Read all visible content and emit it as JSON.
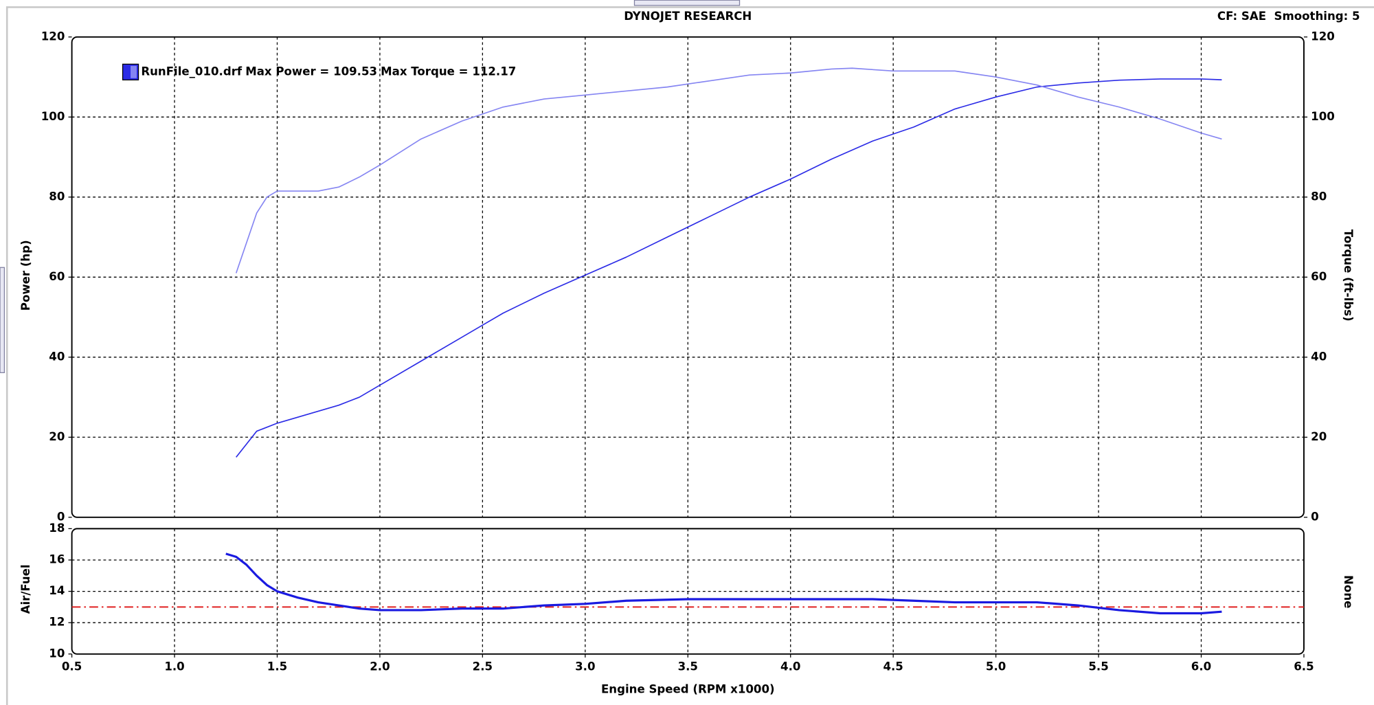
{
  "header": {
    "title": "DYNOJET RESEARCH",
    "info": "CF: SAE  Smoothing: 5"
  },
  "chart_data": [
    {
      "type": "line",
      "legend": {
        "annotations": [
          "Max Power = 109.53",
          "Max Torque = 112.17"
        ]
      },
      "ylabel": "Power (hp)",
      "y2label": "Torque (ft-lbs)",
      "xlim": [
        0.5,
        6.5
      ],
      "xticks": [
        0.5,
        {
          "value": 1,
          "label": "1.0"
        },
        1.5,
        {
          "value": 2,
          "label": "2.0"
        },
        2.5,
        {
          "value": 3,
          "label": "3.0"
        },
        3.5,
        {
          "value": 4,
          "label": "4.0"
        },
        4.5,
        {
          "value": 5,
          "label": "5.0"
        },
        5.5,
        {
          "value": 6,
          "label": "6.0"
        },
        6.5
      ],
      "ylim": [
        0,
        120
      ],
      "yticks": [
        0,
        20,
        40,
        60,
        80,
        100,
        120
      ],
      "y2lim": [
        0,
        120
      ],
      "y2ticks": [
        0,
        20,
        40,
        60,
        80,
        100,
        120
      ],
      "grid": true,
      "series": [
        {
          "name": "RunFile_010.drf",
          "color": "#2b2be6",
          "x": [
            1.3,
            1.4,
            1.5,
            1.6,
            1.7,
            1.8,
            1.9,
            2.0,
            2.2,
            2.4,
            2.5,
            2.6,
            2.8,
            3.0,
            3.2,
            3.4,
            3.6,
            3.8,
            4.0,
            4.2,
            4.4,
            4.6,
            4.8,
            5.0,
            5.2,
            5.4,
            5.6,
            5.8,
            6.0,
            6.1
          ],
          "values": [
            15,
            21.5,
            23.5,
            25,
            26.5,
            28,
            30,
            33,
            39,
            45,
            48,
            51,
            56,
            60.5,
            65,
            70,
            75,
            80,
            84.5,
            89.5,
            94,
            97.5,
            102,
            105,
            107.5,
            108.5,
            109.2,
            109.5,
            109.5,
            109.3
          ]
        },
        {
          "color": "#8585f2",
          "axis": "y2",
          "x": [
            1.3,
            1.4,
            1.45,
            1.5,
            1.6,
            1.7,
            1.8,
            1.9,
            2.0,
            2.2,
            2.4,
            2.6,
            2.8,
            3.0,
            3.2,
            3.4,
            3.6,
            3.8,
            4.0,
            4.2,
            4.3,
            4.5,
            4.8,
            5.0,
            5.2,
            5.4,
            5.6,
            5.8,
            6.0,
            6.1
          ],
          "values": [
            61,
            76,
            80,
            81.5,
            81.5,
            81.5,
            82.5,
            85,
            88,
            94.5,
            99,
            102.5,
            104.5,
            105.5,
            106.5,
            107.5,
            109,
            110.5,
            111,
            112,
            112.2,
            111.5,
            111.5,
            110,
            108,
            105,
            102.5,
            99.5,
            96,
            94.5
          ]
        }
      ]
    },
    {
      "type": "line",
      "ylabel": "Air/Fuel",
      "y2label": "None",
      "xlabel": "Engine Speed (RPM x1000)",
      "xlim": [
        0.5,
        6.5
      ],
      "xticks": [
        0.5,
        {
          "value": 1,
          "label": "1.0"
        },
        1.5,
        {
          "value": 2,
          "label": "2.0"
        },
        2.5,
        {
          "value": 3,
          "label": "3.0"
        },
        3.5,
        {
          "value": 4,
          "label": "4.0"
        },
        4.5,
        {
          "value": 5,
          "label": "5.0"
        },
        5.5,
        {
          "value": 6,
          "label": "6.0"
        },
        6.5
      ],
      "ylim": [
        10,
        18
      ],
      "yticks": [
        10,
        12,
        14,
        16,
        18
      ],
      "grid": true,
      "reference_line": {
        "value": 13,
        "color": "#e02020"
      },
      "series": [
        {
          "color": "#1a1ae0",
          "x": [
            1.25,
            1.3,
            1.35,
            1.4,
            1.45,
            1.5,
            1.6,
            1.7,
            1.8,
            1.9,
            2.0,
            2.2,
            2.4,
            2.6,
            2.8,
            3.0,
            3.2,
            3.5,
            4.0,
            4.4,
            4.6,
            4.8,
            5.0,
            5.2,
            5.4,
            5.6,
            5.8,
            6.0,
            6.1
          ],
          "values": [
            16.4,
            16.2,
            15.7,
            15,
            14.4,
            14,
            13.6,
            13.3,
            13.1,
            12.9,
            12.8,
            12.8,
            12.9,
            12.9,
            13.1,
            13.2,
            13.4,
            13.5,
            13.5,
            13.5,
            13.4,
            13.3,
            13.3,
            13.3,
            13.1,
            12.8,
            12.6,
            12.6,
            12.7
          ]
        }
      ]
    }
  ]
}
